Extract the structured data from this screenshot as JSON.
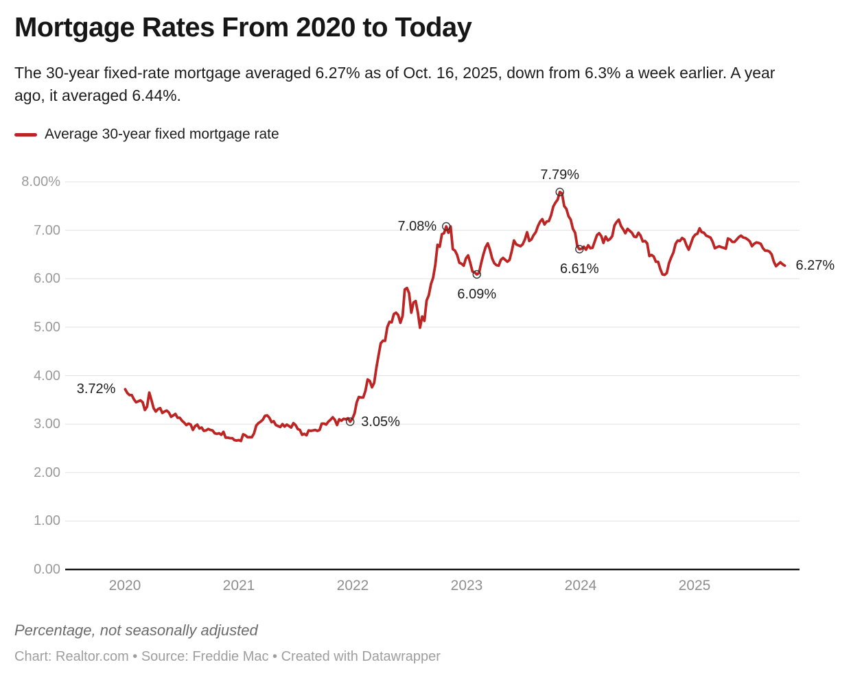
{
  "header": {
    "title": "Mortgage Rates From 2020 to Today",
    "subtitle": "The 30-year fixed-rate mortgage averaged 6.27% as of Oct. 16, 2025, down from 6.3% a week earlier. A year ago, it averaged 6.44%."
  },
  "legend": {
    "label": "Average 30-year fixed mortgage rate"
  },
  "footer": {
    "note": "Percentage, not seasonally adjusted",
    "credit": "Chart: Realtor.com • Source: Freddie Mac • Created with Datawrapper"
  },
  "colors": {
    "line": "#bc2524",
    "grid": "#e1e1e1",
    "axis": "#1a1a1a",
    "marker_stroke": "#333333",
    "tick_text": "#9a9a9a",
    "annotation_text": "#1d1d1d"
  },
  "chart_data": {
    "type": "line",
    "series_name": "Average 30-year fixed mortgage rate",
    "unit": "percent",
    "frequency": "weekly",
    "x_start": "2020-01-02",
    "x_end": "2025-10-16",
    "ylim": [
      0,
      8
    ],
    "grid": true,
    "legend_position": "top-left",
    "y_ticks": [
      "0.00",
      "1.00",
      "2.00",
      "3.00",
      "4.00",
      "5.00",
      "6.00",
      "7.00",
      "8.00%"
    ],
    "y_tick_values": [
      0,
      1,
      2,
      3,
      4,
      5,
      6,
      7,
      8
    ],
    "x_ticks": [
      "2020",
      "2021",
      "2022",
      "2023",
      "2024",
      "2025"
    ],
    "x_tick_values": [
      2020,
      2021,
      2022,
      2023,
      2024,
      2025
    ],
    "values": [
      3.72,
      3.64,
      3.6,
      3.6,
      3.51,
      3.45,
      3.47,
      3.49,
      3.45,
      3.29,
      3.36,
      3.65,
      3.5,
      3.33,
      3.26,
      3.31,
      3.33,
      3.23,
      3.26,
      3.28,
      3.24,
      3.15,
      3.18,
      3.21,
      3.13,
      3.13,
      3.07,
      3.03,
      2.98,
      3.01,
      2.99,
      2.88,
      2.96,
      2.99,
      2.91,
      2.93,
      2.86,
      2.87,
      2.9,
      2.88,
      2.87,
      2.81,
      2.8,
      2.81,
      2.78,
      2.84,
      2.72,
      2.72,
      2.71,
      2.71,
      2.67,
      2.66,
      2.67,
      2.65,
      2.79,
      2.77,
      2.73,
      2.73,
      2.73,
      2.81,
      2.97,
      3.02,
      3.05,
      3.09,
      3.17,
      3.18,
      3.13,
      3.04,
      3.06,
      2.98,
      2.96,
      2.94,
      3.0,
      2.95,
      2.99,
      2.96,
      2.93,
      3.02,
      2.98,
      2.9,
      2.88,
      2.78,
      2.8,
      2.77,
      2.87,
      2.86,
      2.87,
      2.88,
      2.86,
      2.88,
      3.01,
      3.01,
      2.99,
      3.05,
      3.09,
      3.14,
      3.09,
      2.98,
      3.1,
      3.07,
      3.11,
      3.1,
      3.12,
      3.05,
      3.11,
      3.22,
      3.45,
      3.56,
      3.55,
      3.55,
      3.69,
      3.92,
      3.89,
      3.76,
      3.85,
      4.16,
      4.42,
      4.67,
      4.72,
      4.72,
      5.0,
      5.11,
      5.1,
      5.27,
      5.3,
      5.25,
      5.09,
      5.23,
      5.78,
      5.81,
      5.7,
      5.3,
      5.51,
      5.54,
      5.3,
      4.99,
      5.22,
      5.13,
      5.55,
      5.66,
      5.89,
      6.02,
      6.29,
      6.7,
      6.66,
      6.92,
      6.94,
      7.08,
      6.95,
      7.08,
      6.61,
      6.58,
      6.49,
      6.33,
      6.31,
      6.27,
      6.42,
      6.48,
      6.33,
      6.15,
      6.13,
      6.09,
      6.12,
      6.32,
      6.5,
      6.65,
      6.73,
      6.6,
      6.42,
      6.32,
      6.28,
      6.27,
      6.39,
      6.43,
      6.39,
      6.35,
      6.39,
      6.57,
      6.79,
      6.71,
      6.69,
      6.67,
      6.71,
      6.81,
      6.96,
      6.78,
      6.81,
      6.9,
      6.96,
      7.09,
      7.18,
      7.23,
      7.12,
      7.18,
      7.19,
      7.31,
      7.49,
      7.57,
      7.63,
      7.79,
      7.76,
      7.5,
      7.44,
      7.29,
      7.22,
      7.03,
      6.95,
      6.67,
      6.61,
      6.62,
      6.66,
      6.6,
      6.69,
      6.63,
      6.64,
      6.77,
      6.9,
      6.94,
      6.88,
      6.74,
      6.87,
      6.79,
      6.82,
      6.88,
      7.1,
      7.17,
      7.22,
      7.09,
      7.02,
      6.94,
      7.03,
      6.99,
      6.95,
      6.87,
      6.86,
      6.95,
      6.89,
      6.77,
      6.78,
      6.73,
      6.47,
      6.49,
      6.46,
      6.35,
      6.35,
      6.2,
      6.09,
      6.08,
      6.12,
      6.32,
      6.44,
      6.54,
      6.72,
      6.79,
      6.78,
      6.84,
      6.81,
      6.69,
      6.6,
      6.72,
      6.85,
      6.91,
      6.93,
      7.04,
      6.96,
      6.95,
      6.89,
      6.87,
      6.85,
      6.76,
      6.63,
      6.65,
      6.67,
      6.65,
      6.64,
      6.62,
      6.83,
      6.81,
      6.76,
      6.76,
      6.81,
      6.86,
      6.89,
      6.85,
      6.84,
      6.81,
      6.77,
      6.67,
      6.72,
      6.75,
      6.74,
      6.72,
      6.63,
      6.58,
      6.58,
      6.56,
      6.5,
      6.35,
      6.26,
      6.3,
      6.34,
      6.3,
      6.27
    ],
    "markers": [
      103,
      147,
      161,
      199,
      208
    ],
    "annotations": [
      {
        "text": "3.72%",
        "index": 0,
        "placement": "left"
      },
      {
        "text": "3.05%",
        "index": 103,
        "placement": "right"
      },
      {
        "text": "7.08%",
        "index": 147,
        "placement": "left"
      },
      {
        "text": "6.09%",
        "index": 161,
        "placement": "below"
      },
      {
        "text": "7.79%",
        "index": 199,
        "placement": "above"
      },
      {
        "text": "6.61%",
        "index": 208,
        "placement": "below"
      },
      {
        "text": "6.27%",
        "index": 302,
        "placement": "right"
      }
    ]
  }
}
